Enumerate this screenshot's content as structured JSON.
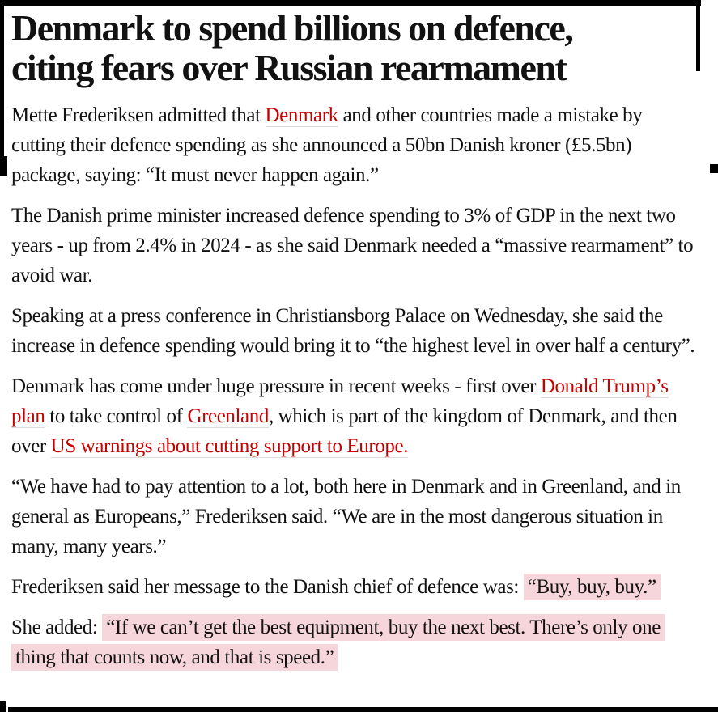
{
  "article": {
    "headline": {
      "line1": "Denmark to spend billions on defence,",
      "line2": "citing fears over Russian rearmament"
    },
    "colors": {
      "text": "#121212",
      "link": "#c70000",
      "link_underline": "#dcdcdc",
      "highlight": "#f6d6da",
      "artifact": "#000000"
    },
    "paragraphs": [
      {
        "segments": [
          {
            "type": "text",
            "text": "Mette Frederiksen admitted that "
          },
          {
            "type": "link",
            "text": "Denmark"
          },
          {
            "type": "text",
            "text": " and other countries made a mistake by cutting their defence spending as she announced a 50bn Danish kroner (£5.5bn) package, saying: “It must never happen again.”"
          }
        ]
      },
      {
        "segments": [
          {
            "type": "text",
            "text": "The Danish prime minister increased defence spending to 3% of GDP in the next two years - up from 2.4% in 2024 - as she said Denmark needed a “massive rearmament” to avoid war."
          }
        ]
      },
      {
        "segments": [
          {
            "type": "text",
            "text": "Speaking at a press conference in Christiansborg Palace on Wednesday, she said the increase in defence spending would bring it to “the highest level in over half a century”."
          }
        ]
      },
      {
        "segments": [
          {
            "type": "text",
            "text": "Denmark has come under huge pressure in recent weeks - first over "
          },
          {
            "type": "link",
            "text": "Donald Trump’s plan"
          },
          {
            "type": "text",
            "text": " to take control of "
          },
          {
            "type": "link",
            "text": "Greenland"
          },
          {
            "type": "text",
            "text": ", which is part of the kingdom of Denmark, and then over "
          },
          {
            "type": "link",
            "text": "US warnings about cutting support to Europe."
          }
        ]
      },
      {
        "segments": [
          {
            "type": "text",
            "text": "“We have had to pay attention to a lot, both here in Denmark and in Greenland, and in general as Europeans,” Frederiksen said. “We are in the most dangerous situation in many, many years.”"
          }
        ]
      },
      {
        "segments": [
          {
            "type": "text",
            "text": "Frederiksen said her message to the Danish chief of defence was: "
          },
          {
            "type": "highlight",
            "text": "“Buy, buy, buy.”"
          }
        ]
      },
      {
        "segments": [
          {
            "type": "text",
            "text": "She added: "
          },
          {
            "type": "highlight",
            "text": "“If we can’t get the best equipment, buy the next best. There’s only one thing that counts now, and that is speed.”"
          }
        ]
      }
    ]
  }
}
